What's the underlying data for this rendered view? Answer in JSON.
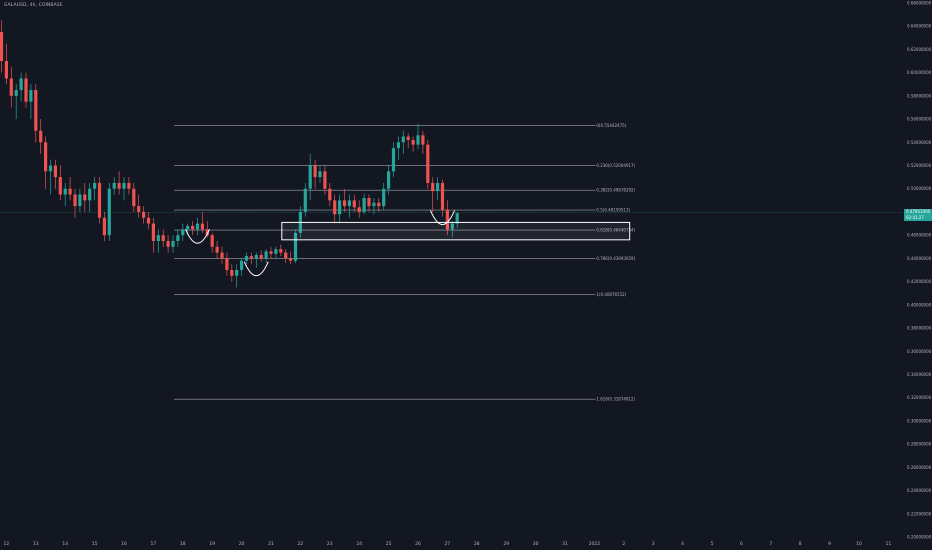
{
  "header": {
    "title": "GALAUSD, 4h, COINBASE"
  },
  "colors": {
    "background": "#131722",
    "up": "#26a69a",
    "down": "#ef5350",
    "grid_line": "#d1d4dc",
    "text": "#b2b5be",
    "annotation": "#ffffff"
  },
  "price_tag": {
    "price": "0.47951000",
    "countdown": "02:41:27"
  },
  "chart_data": {
    "type": "candlestick",
    "timeframe": "4h",
    "symbol": "GALAUSD",
    "exchange": "COINBASE",
    "ylim": [
      0.2,
      0.66
    ],
    "y_ticks": [
      "0.66000000",
      "0.64000000",
      "0.62000000",
      "0.60000000",
      "0.58000000",
      "0.56000000",
      "0.54000000",
      "0.52000000",
      "0.50000000",
      "0.48000000",
      "0.46000000",
      "0.44000000",
      "0.42000000",
      "0.40000000",
      "0.38000000",
      "0.36000000",
      "0.34000000",
      "0.32000000",
      "0.30000000",
      "0.28000000",
      "0.26000000",
      "0.24000000",
      "0.22000000",
      "0.20000000"
    ],
    "x_ticks": [
      {
        "label": "12",
        "i": 1
      },
      {
        "label": "13",
        "i": 7
      },
      {
        "label": "14",
        "i": 13
      },
      {
        "label": "15",
        "i": 19
      },
      {
        "label": "16",
        "i": 25
      },
      {
        "label": "17",
        "i": 31
      },
      {
        "label": "18",
        "i": 37
      },
      {
        "label": "19",
        "i": 43
      },
      {
        "label": "20",
        "i": 49
      },
      {
        "label": "21",
        "i": 55
      },
      {
        "label": "22",
        "i": 61
      },
      {
        "label": "23",
        "i": 67
      },
      {
        "label": "24",
        "i": 73
      },
      {
        "label": "25",
        "i": 79
      },
      {
        "label": "26",
        "i": 85
      },
      {
        "label": "27",
        "i": 91
      },
      {
        "label": "28",
        "i": 97
      },
      {
        "label": "29",
        "i": 103
      },
      {
        "label": "30",
        "i": 109
      },
      {
        "label": "31",
        "i": 115
      },
      {
        "label": "2022",
        "i": 121
      },
      {
        "label": "2",
        "i": 127
      },
      {
        "label": "3",
        "i": 133
      },
      {
        "label": "4",
        "i": 139
      },
      {
        "label": "5",
        "i": 145
      },
      {
        "label": "6",
        "i": 151
      },
      {
        "label": "7",
        "i": 157
      },
      {
        "label": "8",
        "i": 163
      },
      {
        "label": "9",
        "i": 169
      },
      {
        "label": "10",
        "i": 175
      },
      {
        "label": "11",
        "i": 181
      }
    ],
    "candles": [
      [
        0.635,
        0.645,
        0.6,
        0.61
      ],
      [
        0.61,
        0.625,
        0.59,
        0.595
      ],
      [
        0.595,
        0.605,
        0.57,
        0.58
      ],
      [
        0.58,
        0.59,
        0.56,
        0.585
      ],
      [
        0.585,
        0.6,
        0.575,
        0.595
      ],
      [
        0.595,
        0.6,
        0.57,
        0.575
      ],
      [
        0.575,
        0.59,
        0.56,
        0.585
      ],
      [
        0.585,
        0.59,
        0.54,
        0.55
      ],
      [
        0.55,
        0.56,
        0.53,
        0.54
      ],
      [
        0.54,
        0.545,
        0.5,
        0.515
      ],
      [
        0.515,
        0.525,
        0.495,
        0.52
      ],
      [
        0.52,
        0.525,
        0.5,
        0.51
      ],
      [
        0.51,
        0.52,
        0.49,
        0.495
      ],
      [
        0.495,
        0.505,
        0.485,
        0.5
      ],
      [
        0.5,
        0.51,
        0.49,
        0.495
      ],
      [
        0.495,
        0.5,
        0.475,
        0.485
      ],
      [
        0.485,
        0.5,
        0.48,
        0.495
      ],
      [
        0.495,
        0.505,
        0.48,
        0.49
      ],
      [
        0.49,
        0.505,
        0.48,
        0.5
      ],
      [
        0.5,
        0.51,
        0.49,
        0.505
      ],
      [
        0.505,
        0.51,
        0.47,
        0.475
      ],
      [
        0.475,
        0.48,
        0.455,
        0.46
      ],
      [
        0.46,
        0.505,
        0.455,
        0.5
      ],
      [
        0.5,
        0.51,
        0.495,
        0.505
      ],
      [
        0.505,
        0.515,
        0.495,
        0.5
      ],
      [
        0.5,
        0.51,
        0.49,
        0.505
      ],
      [
        0.505,
        0.51,
        0.495,
        0.5
      ],
      [
        0.5,
        0.505,
        0.48,
        0.485
      ],
      [
        0.485,
        0.495,
        0.475,
        0.48
      ],
      [
        0.48,
        0.485,
        0.47,
        0.475
      ],
      [
        0.475,
        0.48,
        0.465,
        0.47
      ],
      [
        0.47,
        0.475,
        0.445,
        0.455
      ],
      [
        0.455,
        0.465,
        0.445,
        0.46
      ],
      [
        0.46,
        0.465,
        0.45,
        0.455
      ],
      [
        0.455,
        0.46,
        0.445,
        0.45
      ],
      [
        0.45,
        0.46,
        0.445,
        0.455
      ],
      [
        0.455,
        0.465,
        0.45,
        0.46
      ],
      [
        0.46,
        0.47,
        0.455,
        0.465
      ],
      [
        0.465,
        0.47,
        0.46,
        0.468
      ],
      [
        0.468,
        0.472,
        0.46,
        0.465
      ],
      [
        0.465,
        0.475,
        0.46,
        0.47
      ],
      [
        0.47,
        0.48,
        0.462,
        0.465
      ],
      [
        0.465,
        0.472,
        0.458,
        0.46
      ],
      [
        0.46,
        0.462,
        0.445,
        0.45
      ],
      [
        0.45,
        0.455,
        0.44,
        0.445
      ],
      [
        0.445,
        0.45,
        0.435,
        0.44
      ],
      [
        0.44,
        0.445,
        0.425,
        0.43
      ],
      [
        0.43,
        0.435,
        0.42,
        0.425
      ],
      [
        0.425,
        0.435,
        0.415,
        0.43
      ],
      [
        0.43,
        0.44,
        0.425,
        0.438
      ],
      [
        0.438,
        0.445,
        0.435,
        0.442
      ],
      [
        0.442,
        0.445,
        0.435,
        0.44
      ],
      [
        0.44,
        0.445,
        0.432,
        0.443
      ],
      [
        0.443,
        0.447,
        0.437,
        0.44
      ],
      [
        0.44,
        0.448,
        0.436,
        0.446
      ],
      [
        0.446,
        0.45,
        0.44,
        0.444
      ],
      [
        0.444,
        0.45,
        0.44,
        0.448
      ],
      [
        0.448,
        0.452,
        0.442,
        0.445
      ],
      [
        0.445,
        0.448,
        0.436,
        0.44
      ],
      [
        0.44,
        0.446,
        0.435,
        0.438
      ],
      [
        0.438,
        0.465,
        0.436,
        0.462
      ],
      [
        0.462,
        0.485,
        0.458,
        0.48
      ],
      [
        0.48,
        0.505,
        0.476,
        0.5
      ],
      [
        0.5,
        0.53,
        0.49,
        0.52
      ],
      [
        0.52,
        0.525,
        0.5,
        0.51
      ],
      [
        0.51,
        0.52,
        0.505,
        0.515
      ],
      [
        0.515,
        0.52,
        0.495,
        0.5
      ],
      [
        0.5,
        0.505,
        0.485,
        0.49
      ],
      [
        0.49,
        0.495,
        0.47,
        0.478
      ],
      [
        0.478,
        0.495,
        0.47,
        0.49
      ],
      [
        0.49,
        0.5,
        0.48,
        0.485
      ],
      [
        0.485,
        0.495,
        0.475,
        0.49
      ],
      [
        0.49,
        0.495,
        0.48,
        0.484
      ],
      [
        0.484,
        0.49,
        0.475,
        0.48
      ],
      [
        0.48,
        0.496,
        0.478,
        0.492
      ],
      [
        0.492,
        0.495,
        0.48,
        0.485
      ],
      [
        0.485,
        0.492,
        0.478,
        0.488
      ],
      [
        0.488,
        0.492,
        0.48,
        0.485
      ],
      [
        0.485,
        0.505,
        0.482,
        0.5
      ],
      [
        0.5,
        0.52,
        0.495,
        0.515
      ],
      [
        0.515,
        0.54,
        0.51,
        0.535
      ],
      [
        0.535,
        0.545,
        0.525,
        0.54
      ],
      [
        0.54,
        0.55,
        0.53,
        0.545
      ],
      [
        0.545,
        0.548,
        0.535,
        0.542
      ],
      [
        0.542,
        0.545,
        0.532,
        0.538
      ],
      [
        0.538,
        0.556,
        0.534,
        0.546
      ],
      [
        0.546,
        0.55,
        0.53,
        0.538
      ],
      [
        0.538,
        0.542,
        0.5,
        0.505
      ],
      [
        0.505,
        0.51,
        0.48,
        0.498
      ],
      [
        0.498,
        0.51,
        0.49,
        0.505
      ],
      [
        0.505,
        0.508,
        0.476,
        0.482
      ],
      [
        0.482,
        0.49,
        0.46,
        0.465
      ],
      [
        0.465,
        0.472,
        0.458,
        0.47
      ],
      [
        0.47,
        0.48,
        0.466,
        0.479
      ]
    ],
    "fib_levels": [
      {
        "label": "0(0.55442475)",
        "ratio": 0,
        "price": 0.55442475
      },
      {
        "label": "0.236(0.52004917)",
        "ratio": 0.236,
        "price": 0.52004917
      },
      {
        "label": "0.382(0.49878292)",
        "ratio": 0.382,
        "price": 0.49878292
      },
      {
        "label": "0.5(0.48159513)",
        "ratio": 0.5,
        "price": 0.48159513
      },
      {
        "label": "0.618(0.46440734)",
        "ratio": 0.618,
        "price": 0.46440734
      },
      {
        "label": "0.786(0.43993659)",
        "ratio": 0.786,
        "price": 0.43993659
      },
      {
        "label": "1(0.40876552)",
        "ratio": 1,
        "price": 0.40876552
      },
      {
        "label": "1.618(0.31874812)",
        "ratio": 1.618,
        "price": 0.31874812
      }
    ],
    "fib_range_candles": [
      35,
      121
    ],
    "zone": {
      "price_top": 0.471,
      "price_bottom": 0.456,
      "from_candle": 57,
      "to_candle": 128
    },
    "swing_arcs": [
      {
        "candle": 40
      },
      {
        "candle": 52
      },
      {
        "candle": 90
      }
    ],
    "current_price": 0.47951
  }
}
